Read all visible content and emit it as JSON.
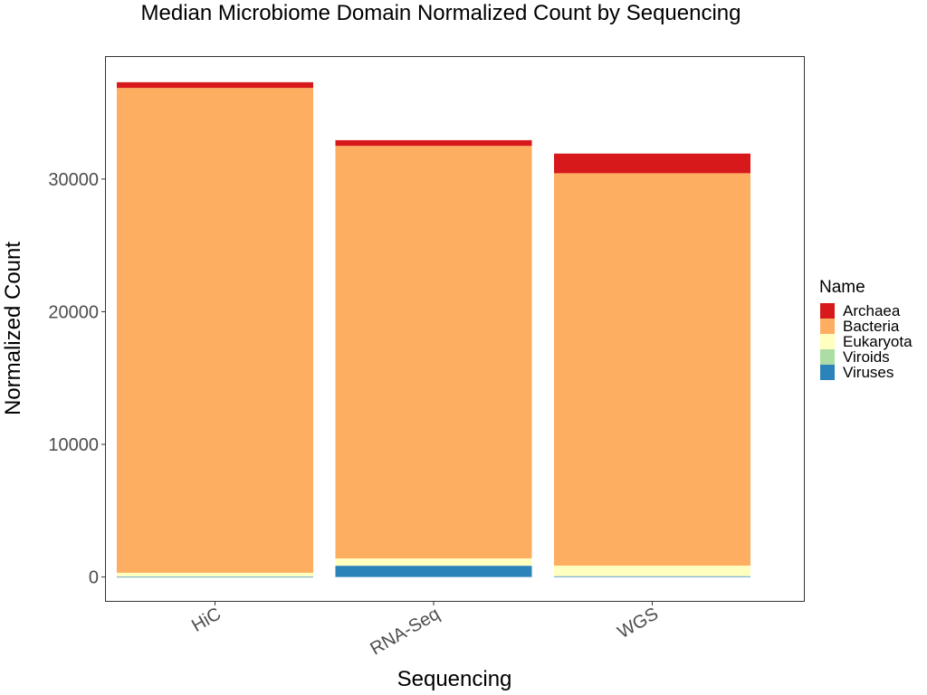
{
  "chart_data": {
    "type": "bar",
    "stacked": true,
    "title": "Median Microbiome Domain Normalized Count by Sequencing",
    "xlabel": "Sequencing",
    "ylabel": "Normalized Count",
    "categories": [
      "HiC",
      "RNA-Seq",
      "WGS"
    ],
    "yticks": [
      0,
      10000,
      20000,
      30000
    ],
    "ytick_labels": [
      "0",
      "10000",
      "20000",
      "30000"
    ],
    "ylim": [
      -1800,
      39200
    ],
    "grid": false,
    "legend": {
      "title": "Name",
      "position": "right"
    },
    "series": [
      {
        "name": "Viruses",
        "color": "#2b83ba",
        "values": [
          20,
          850,
          60
        ]
      },
      {
        "name": "Viroids",
        "color": "#abdda4",
        "values": [
          0,
          0,
          0
        ]
      },
      {
        "name": "Eukaryota",
        "color": "#ffffbf",
        "values": [
          300,
          550,
          800
        ]
      },
      {
        "name": "Bacteria",
        "color": "#fdae61",
        "values": [
          36550,
          31100,
          29580
        ]
      },
      {
        "name": "Archaea",
        "color": "#d7191c",
        "values": [
          430,
          430,
          1480
        ]
      }
    ]
  }
}
